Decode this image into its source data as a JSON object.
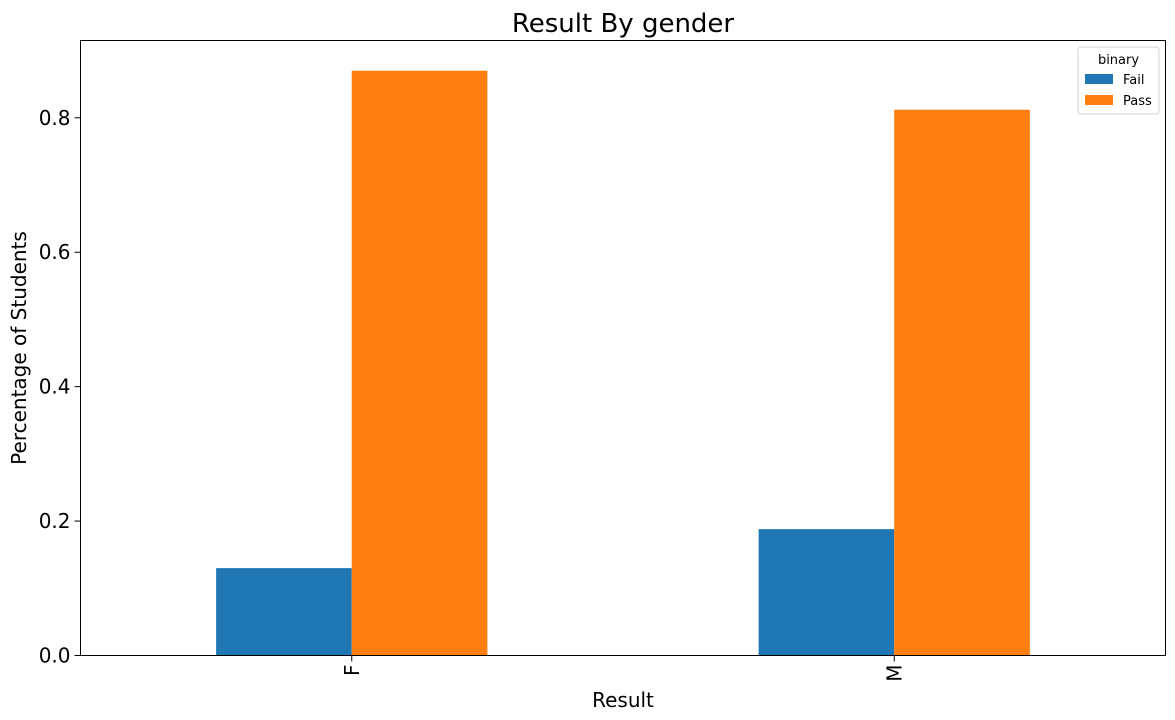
{
  "chart_data": {
    "type": "bar",
    "title": "Result By gender",
    "xlabel": "Result",
    "ylabel": "Percentage of Students",
    "categories": [
      "F",
      "M"
    ],
    "series": [
      {
        "name": "Fail",
        "values": [
          0.13,
          0.188
        ],
        "color": "#1f77b4"
      },
      {
        "name": "Pass",
        "values": [
          0.87,
          0.812
        ],
        "color": "#ff7f0e"
      }
    ],
    "ylim": [
      0,
      0.915
    ],
    "yticks": [
      0.0,
      0.2,
      0.4,
      0.6,
      0.8
    ],
    "ytick_labels": [
      "0.0",
      "0.2",
      "0.4",
      "0.6",
      "0.8"
    ],
    "grid": false,
    "legend": {
      "title": "binary",
      "placement": "top-right",
      "entries": [
        "Fail",
        "Pass"
      ]
    },
    "xtick_rotation": "vertical"
  }
}
